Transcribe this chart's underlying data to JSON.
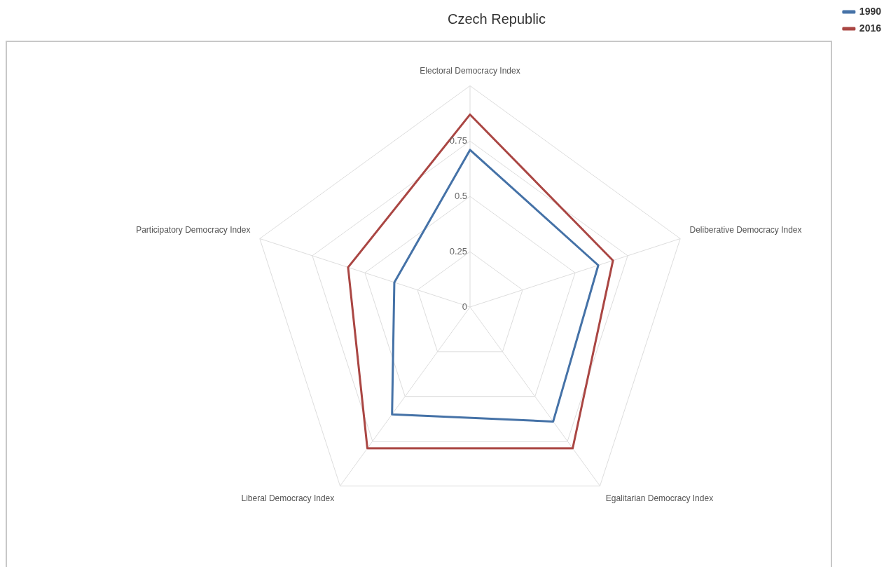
{
  "chart_data": {
    "type": "radar",
    "title": "Czech Republic",
    "categories": [
      "Electoral Democracy Index",
      "Deliberative Democracy Index",
      "Egalitarian Democracy Index",
      "Liberal Democracy Index",
      "Participatory Democracy Index"
    ],
    "series": [
      {
        "name": "1990",
        "color": "#4572a7",
        "values": [
          0.71,
          0.61,
          0.64,
          0.6,
          0.36
        ]
      },
      {
        "name": "2016",
        "color": "#aa4643",
        "values": [
          0.87,
          0.68,
          0.79,
          0.79,
          0.58
        ]
      }
    ],
    "ylim": [
      0,
      1
    ],
    "yticks": [
      0,
      0.25,
      0.5,
      0.75
    ],
    "grid": true,
    "legend": "top right",
    "marker": "none",
    "line_style": "solid"
  }
}
